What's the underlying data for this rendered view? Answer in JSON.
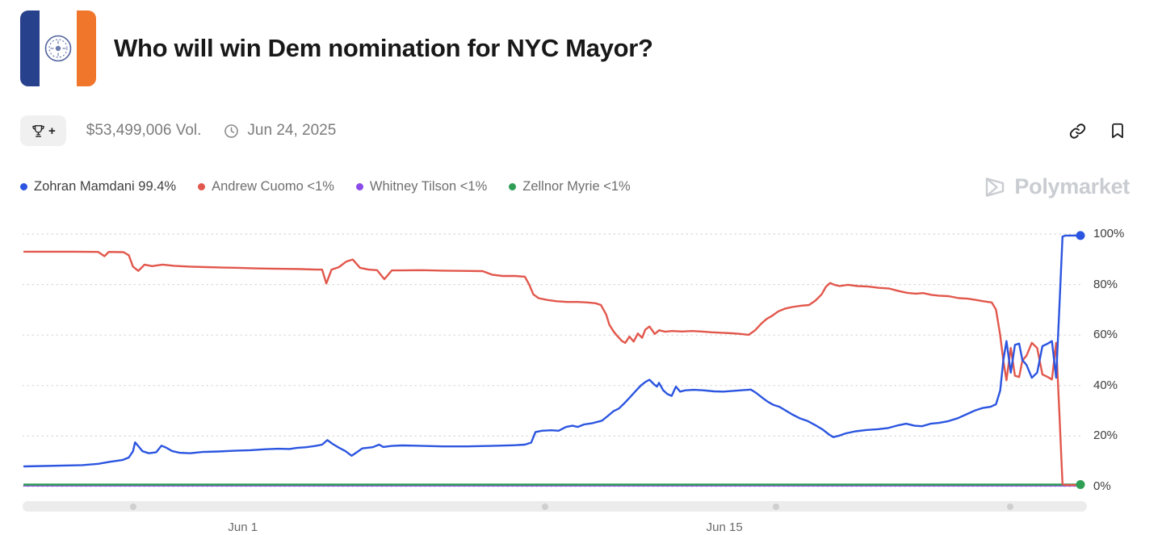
{
  "header": {
    "title": "Who will win Dem nomination for NYC Mayor?"
  },
  "toolbar": {
    "volume": "$53,499,006 Vol.",
    "end_date": "Jun 24, 2025",
    "trophy_plus": "+"
  },
  "legend": [
    {
      "label": "Zohran Mamdani 99.4%",
      "color": "#2b55e0",
      "text_color": "#3f3f3f"
    },
    {
      "label": "Andrew Cuomo <1%",
      "color": "#e2574c",
      "text_color": "#6e6e6e"
    },
    {
      "label": "Whitney Tilson <1%",
      "color": "#8a4be8",
      "text_color": "#6e6e6e"
    },
    {
      "label": "Zellnor Myrie <1%",
      "color": "#2f9e55",
      "text_color": "#6e6e6e"
    }
  ],
  "watermark": {
    "text": "Polymarket",
    "color": "#c9ccd1"
  },
  "scrubber": {
    "dot_positions": [
      10.4,
      49.1,
      70.8,
      92.8
    ]
  },
  "chart_data": {
    "type": "line",
    "title": "Who will win Dem nomination for NYC Mayor?",
    "xlabel": "",
    "ylabel": "",
    "ylim": [
      0,
      100
    ],
    "grid": "dotted-horizontal",
    "legend_position": "top-left",
    "x_unit": "percent-of-visible-range",
    "yticks": [
      {
        "label": "100%",
        "value": 100
      },
      {
        "label": "80%",
        "value": 80
      },
      {
        "label": "60%",
        "value": 60
      },
      {
        "label": "40%",
        "value": 40
      },
      {
        "label": "20%",
        "value": 20
      },
      {
        "label": "0%",
        "value": 0
      }
    ],
    "xticks": [
      {
        "label": "Jun 1",
        "pos": 20.7
      },
      {
        "label": "Jun 15",
        "pos": 66.3
      }
    ],
    "series": [
      {
        "name": "Whitney Tilson",
        "color": "#8a4be8",
        "end_dot": false,
        "points": [
          [
            0,
            0.4
          ],
          [
            100,
            0.4
          ]
        ]
      },
      {
        "name": "Zellnor Myrie",
        "color": "#2f9e55",
        "end_dot": true,
        "points": [
          [
            0,
            0.8
          ],
          [
            100,
            0.8
          ]
        ]
      },
      {
        "name": "Andrew Cuomo",
        "color": "#e2574c",
        "end_dot": false,
        "points": [
          [
            0,
            93
          ],
          [
            4.7,
            93
          ],
          [
            7,
            92.9
          ],
          [
            7.6,
            91.2
          ],
          [
            8,
            92.9
          ],
          [
            9.4,
            92.8
          ],
          [
            9.9,
            91.6
          ],
          [
            10.3,
            87.1
          ],
          [
            10.8,
            85.4
          ],
          [
            11.4,
            87.9
          ],
          [
            12.1,
            87.3
          ],
          [
            13.1,
            87.9
          ],
          [
            14.2,
            87.4
          ],
          [
            15.7,
            87.1
          ],
          [
            17.2,
            86.9
          ],
          [
            18.8,
            86.7
          ],
          [
            20.3,
            86.6
          ],
          [
            21.8,
            86.4
          ],
          [
            23.3,
            86.3
          ],
          [
            24.8,
            86.2
          ],
          [
            26.3,
            86.1
          ],
          [
            27.6,
            85.9
          ],
          [
            28.2,
            85.9
          ],
          [
            28.6,
            80.4
          ],
          [
            29.1,
            85.9
          ],
          [
            29.8,
            86.9
          ],
          [
            30.5,
            89.1
          ],
          [
            31.1,
            89.9
          ],
          [
            31.8,
            86.6
          ],
          [
            32.6,
            85.9
          ],
          [
            33.4,
            85.7
          ],
          [
            34.1,
            82.1
          ],
          [
            34.8,
            85.6
          ],
          [
            35.8,
            85.6
          ],
          [
            37.7,
            85.7
          ],
          [
            39.6,
            85.5
          ],
          [
            41.5,
            85.4
          ],
          [
            43.4,
            85.3
          ],
          [
            44.3,
            83.9
          ],
          [
            45.3,
            83.4
          ],
          [
            46.5,
            83.4
          ],
          [
            47.4,
            83.1
          ],
          [
            47.8,
            80.1
          ],
          [
            48.2,
            76.1
          ],
          [
            48.7,
            74.6
          ],
          [
            49.5,
            73.9
          ],
          [
            50.4,
            73.4
          ],
          [
            51.4,
            73.1
          ],
          [
            52.4,
            73.1
          ],
          [
            53.3,
            72.9
          ],
          [
            54.1,
            72.6
          ],
          [
            54.6,
            71.9
          ],
          [
            55.1,
            68.1
          ],
          [
            55.4,
            64.1
          ],
          [
            55.8,
            61.4
          ],
          [
            56.2,
            59.4
          ],
          [
            56.6,
            57.6
          ],
          [
            56.9,
            56.9
          ],
          [
            57.3,
            59.4
          ],
          [
            57.7,
            57.4
          ],
          [
            58.1,
            60.6
          ],
          [
            58.5,
            58.9
          ],
          [
            58.8,
            62.1
          ],
          [
            59.2,
            63.4
          ],
          [
            59.7,
            60.4
          ],
          [
            60.1,
            61.9
          ],
          [
            60.7,
            61.3
          ],
          [
            61.3,
            61.6
          ],
          [
            62.3,
            61.4
          ],
          [
            63.2,
            61.6
          ],
          [
            64.1,
            61.4
          ],
          [
            65.1,
            61.1
          ],
          [
            66.1,
            60.9
          ],
          [
            67,
            60.7
          ],
          [
            67.9,
            60.4
          ],
          [
            68.6,
            60.1
          ],
          [
            69.2,
            61.9
          ],
          [
            69.8,
            64.6
          ],
          [
            70.3,
            66.4
          ],
          [
            70.8,
            67.6
          ],
          [
            71.4,
            69.4
          ],
          [
            72,
            70.4
          ],
          [
            72.7,
            71.1
          ],
          [
            73.5,
            71.6
          ],
          [
            74.3,
            71.9
          ],
          [
            74.9,
            73.6
          ],
          [
            75.5,
            76.1
          ],
          [
            75.9,
            79.1
          ],
          [
            76.3,
            80.6
          ],
          [
            76.7,
            79.9
          ],
          [
            77.2,
            79.4
          ],
          [
            78,
            79.9
          ],
          [
            78.9,
            79.4
          ],
          [
            79.9,
            79.2
          ],
          [
            80.9,
            78.7
          ],
          [
            81.9,
            78.4
          ],
          [
            82.8,
            77.4
          ],
          [
            83.6,
            76.7
          ],
          [
            84.4,
            76.4
          ],
          [
            85.1,
            76.6
          ],
          [
            85.9,
            75.9
          ],
          [
            86.6,
            75.6
          ],
          [
            87.5,
            75.4
          ],
          [
            88.5,
            74.6
          ],
          [
            89.3,
            74.4
          ],
          [
            90.1,
            73.9
          ],
          [
            90.8,
            73.4
          ],
          [
            91.6,
            72.9
          ],
          [
            92,
            70.1
          ],
          [
            92.4,
            60
          ],
          [
            92.7,
            49.9
          ],
          [
            93,
            42.1
          ],
          [
            93.4,
            54.9
          ],
          [
            93.8,
            43.9
          ],
          [
            94.2,
            43.4
          ],
          [
            94.5,
            49.9
          ],
          [
            94.9,
            51.9
          ],
          [
            95.4,
            56.9
          ],
          [
            95.9,
            54.9
          ],
          [
            96.4,
            44.4
          ],
          [
            96.9,
            43.4
          ],
          [
            97.3,
            42.4
          ],
          [
            97.7,
            56.9
          ],
          [
            98,
            29.9
          ],
          [
            98.3,
            1
          ],
          [
            98.6,
            0.6
          ],
          [
            100,
            0.6
          ]
        ]
      },
      {
        "name": "Zohran Mamdani",
        "color": "#2b55e0",
        "end_dot": true,
        "points": [
          [
            0,
            8
          ],
          [
            5.5,
            8.5
          ],
          [
            7,
            9
          ],
          [
            8.1,
            9.8
          ],
          [
            9.3,
            10.5
          ],
          [
            9.9,
            11.5
          ],
          [
            10.3,
            14
          ],
          [
            10.5,
            17.5
          ],
          [
            10.8,
            16
          ],
          [
            11.2,
            14
          ],
          [
            11.8,
            13.2
          ],
          [
            12.5,
            13.6
          ],
          [
            13,
            16.2
          ],
          [
            13.4,
            15.5
          ],
          [
            14,
            14.1
          ],
          [
            14.7,
            13.4
          ],
          [
            15.7,
            13.2
          ],
          [
            16.9,
            13.7
          ],
          [
            18.4,
            13.9
          ],
          [
            19.9,
            14.2
          ],
          [
            21.4,
            14.4
          ],
          [
            22.9,
            14.8
          ],
          [
            24.1,
            15
          ],
          [
            25.1,
            14.9
          ],
          [
            25.8,
            15.3
          ],
          [
            26.7,
            15.6
          ],
          [
            27.6,
            16.1
          ],
          [
            28.2,
            16.6
          ],
          [
            28.7,
            18.4
          ],
          [
            29.2,
            16.9
          ],
          [
            29.8,
            15.4
          ],
          [
            30.4,
            14.1
          ],
          [
            31,
            12.2
          ],
          [
            31.5,
            13.6
          ],
          [
            32,
            15.1
          ],
          [
            33,
            15.6
          ],
          [
            33.6,
            16.6
          ],
          [
            34,
            15.7
          ],
          [
            34.8,
            16.1
          ],
          [
            35.8,
            16.3
          ],
          [
            37.7,
            16.1
          ],
          [
            39.6,
            15.9
          ],
          [
            41.9,
            15.9
          ],
          [
            44.2,
            16.1
          ],
          [
            46.5,
            16.4
          ],
          [
            47.4,
            16.6
          ],
          [
            48,
            17.4
          ],
          [
            48.4,
            21.6
          ],
          [
            49,
            22.1
          ],
          [
            49.9,
            22.3
          ],
          [
            50.6,
            22.1
          ],
          [
            51.3,
            23.6
          ],
          [
            51.9,
            24.1
          ],
          [
            52.4,
            23.6
          ],
          [
            53,
            24.6
          ],
          [
            53.8,
            25.1
          ],
          [
            54.7,
            26.1
          ],
          [
            55.3,
            28.1
          ],
          [
            55.8,
            29.9
          ],
          [
            56.3,
            30.9
          ],
          [
            56.8,
            32.9
          ],
          [
            57.3,
            35.1
          ],
          [
            57.9,
            37.9
          ],
          [
            58.4,
            40.1
          ],
          [
            58.8,
            41.4
          ],
          [
            59.2,
            42.3
          ],
          [
            59.6,
            40.6
          ],
          [
            59.9,
            39.6
          ],
          [
            60.1,
            41.1
          ],
          [
            60.5,
            38.1
          ],
          [
            60.9,
            36.6
          ],
          [
            61.3,
            35.9
          ],
          [
            61.7,
            39.6
          ],
          [
            62.1,
            37.6
          ],
          [
            62.6,
            38.1
          ],
          [
            63.4,
            38.3
          ],
          [
            64.3,
            38.1
          ],
          [
            65.3,
            37.7
          ],
          [
            66.2,
            37.6
          ],
          [
            67.1,
            37.9
          ],
          [
            68.1,
            38.2
          ],
          [
            68.8,
            38.4
          ],
          [
            69.3,
            37.1
          ],
          [
            69.9,
            35.1
          ],
          [
            70.4,
            33.6
          ],
          [
            70.9,
            32.4
          ],
          [
            71.5,
            31.6
          ],
          [
            72.1,
            30.1
          ],
          [
            72.7,
            28.6
          ],
          [
            73.4,
            27.1
          ],
          [
            74.2,
            25.9
          ],
          [
            74.9,
            24.3
          ],
          [
            75.6,
            22.6
          ],
          [
            76.2,
            20.6
          ],
          [
            76.6,
            19.6
          ],
          [
            77.1,
            20.1
          ],
          [
            77.8,
            21.1
          ],
          [
            78.7,
            21.9
          ],
          [
            79.7,
            22.4
          ],
          [
            80.8,
            22.7
          ],
          [
            81.8,
            23.2
          ],
          [
            82.8,
            24.3
          ],
          [
            83.5,
            24.9
          ],
          [
            84.3,
            24.1
          ],
          [
            85,
            23.9
          ],
          [
            85.8,
            24.9
          ],
          [
            86.6,
            25.2
          ],
          [
            87.5,
            25.9
          ],
          [
            88.4,
            27.1
          ],
          [
            89.2,
            28.6
          ],
          [
            90,
            30.1
          ],
          [
            90.7,
            31.1
          ],
          [
            91.5,
            31.6
          ],
          [
            92,
            32.6
          ],
          [
            92.4,
            38
          ],
          [
            92.7,
            50
          ],
          [
            93,
            57.6
          ],
          [
            93.4,
            45.1
          ],
          [
            93.8,
            56.1
          ],
          [
            94.2,
            56.6
          ],
          [
            94.5,
            50.1
          ],
          [
            94.9,
            48.1
          ],
          [
            95.4,
            43.1
          ],
          [
            95.9,
            45.1
          ],
          [
            96.4,
            55.6
          ],
          [
            96.9,
            56.6
          ],
          [
            97.3,
            57.6
          ],
          [
            97.7,
            43.1
          ],
          [
            98,
            70.1
          ],
          [
            98.3,
            99
          ],
          [
            98.6,
            99.4
          ],
          [
            100,
            99.4
          ]
        ]
      }
    ]
  }
}
